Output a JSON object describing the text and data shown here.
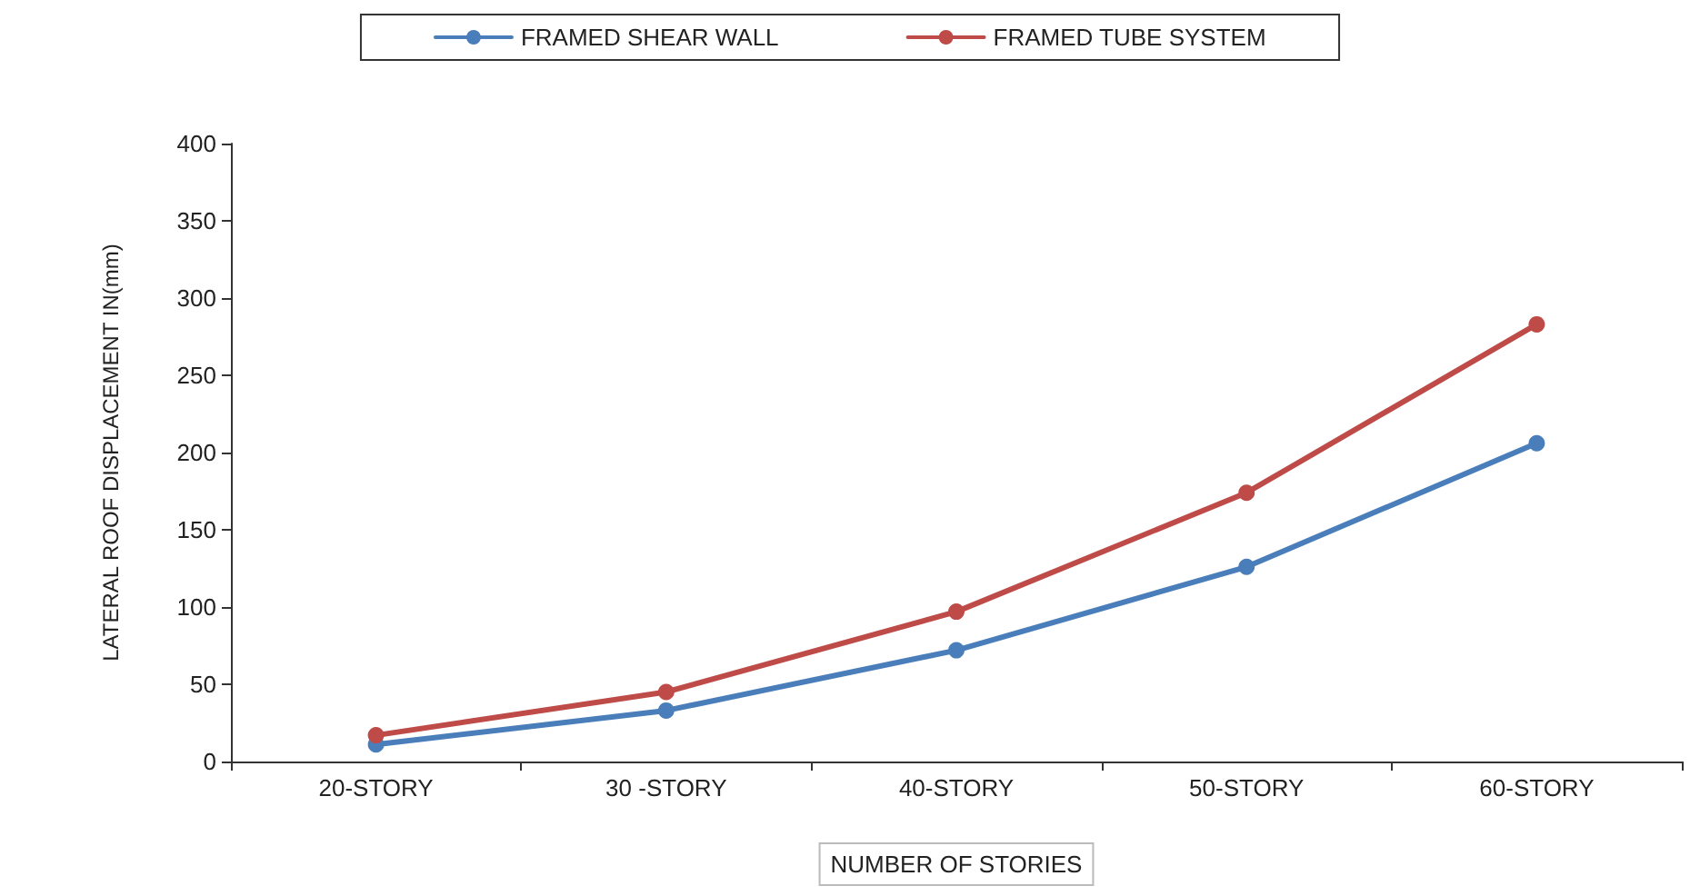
{
  "chart_data": {
    "type": "line",
    "xlabel": "NUMBER OF STORIES",
    "ylabel": "LATERAL ROOF DISPLACEMENT IN(mm)",
    "categories": [
      "20-STORY",
      "30 -STORY",
      "40-STORY",
      "50-STORY",
      "60-STORY"
    ],
    "series": [
      {
        "name": "FRAMED SHEAR WALL",
        "color": "#4a7ebb",
        "values": [
          11,
          33,
          72,
          126,
          206
        ]
      },
      {
        "name": "FRAMED TUBE SYSTEM",
        "color": "#be4b48",
        "values": [
          17,
          45,
          97,
          174,
          283
        ]
      }
    ],
    "ylim": [
      0,
      400
    ],
    "yticks": [
      0,
      50,
      100,
      150,
      200,
      250,
      300,
      350,
      400
    ],
    "grid": false,
    "legend": "top",
    "marker": "circle",
    "line_style": "solid"
  }
}
